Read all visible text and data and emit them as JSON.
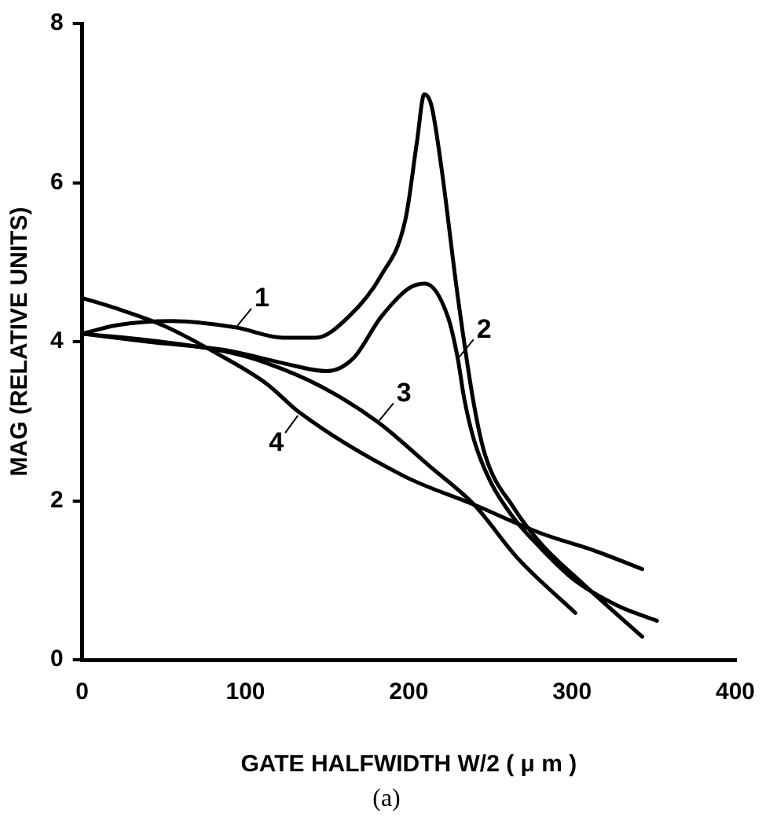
{
  "chart_data": {
    "type": "line",
    "xlabel": "GATE HALFWIDTH W/2 ( μ m )",
    "ylabel": "MAG (RELATIVE UNITS)",
    "xlim": [
      0,
      400
    ],
    "xticks": [
      0,
      100,
      200,
      300,
      400
    ],
    "ylim": [
      0,
      8
    ],
    "yticks": [
      0,
      2,
      4,
      6,
      8
    ],
    "grid": false,
    "legend": false,
    "marker": "none",
    "line_style": "solid",
    "series": [
      {
        "color": "#000000",
        "x": [
          0,
          22,
          55,
          94,
          123,
          143,
          163,
          183,
          198,
          205,
          209.5,
          214,
          220,
          230,
          240,
          247,
          264,
          281,
          307,
          343
        ],
        "values": [
          4.1,
          4.21,
          4.26,
          4.18,
          4.05,
          4.05,
          4.31,
          4.83,
          5.54,
          6.51,
          7.11,
          6.96,
          6.19,
          4.57,
          3.2,
          2.56,
          1.92,
          1.46,
          0.95,
          0.29
        ]
      },
      {
        "color": "#000000",
        "x": [
          0,
          40,
          89,
          123,
          150,
          166,
          183,
          200,
          210,
          224,
          230,
          234,
          240,
          250,
          264,
          281,
          301,
          327,
          352
        ],
        "values": [
          4.1,
          4.0,
          3.89,
          3.73,
          3.63,
          3.79,
          4.31,
          4.67,
          4.73,
          4.31,
          3.79,
          3.28,
          2.76,
          2.24,
          1.79,
          1.4,
          1.01,
          0.69,
          0.49
        ]
      },
      {
        "color": "#000000",
        "x": [
          0,
          40,
          89,
          113,
          146,
          181,
          213,
          240,
          267,
          302
        ],
        "values": [
          4.1,
          4.02,
          3.87,
          3.73,
          3.44,
          2.99,
          2.43,
          1.95,
          1.27,
          0.59
        ]
      },
      {
        "color": "#000000",
        "x": [
          0,
          22,
          50,
          80,
          113,
          133,
          197,
          240,
          281,
          314,
          343
        ],
        "values": [
          4.55,
          4.41,
          4.2,
          3.88,
          3.47,
          3.11,
          2.31,
          1.95,
          1.59,
          1.37,
          1.14
        ]
      }
    ],
    "annotations": [
      {
        "text": "1",
        "x": 94,
        "y": 4.18
      },
      {
        "text": "2",
        "x": 230,
        "y": 3.79
      },
      {
        "text": "3",
        "x": 181,
        "y": 2.99
      },
      {
        "text": "4",
        "x": 133,
        "y": 3.11
      },
      "(a)"
    ]
  }
}
